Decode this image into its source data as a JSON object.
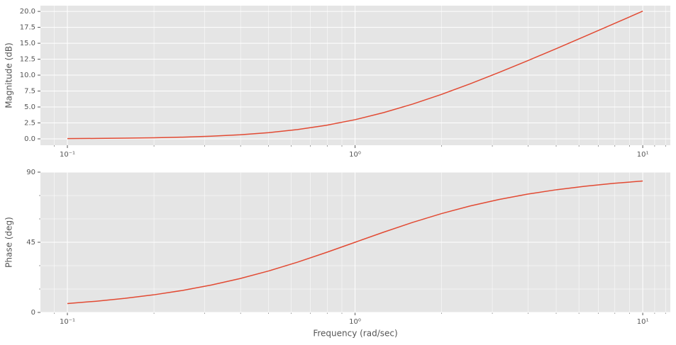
{
  "chart_data": [
    {
      "type": "line",
      "ylabel": "Magnitude (dB)",
      "xscale": "log",
      "grid": true,
      "background": "#e5e5e5",
      "x": [
        0.1,
        0.1259,
        0.1585,
        0.1995,
        0.2512,
        0.3162,
        0.3981,
        0.5012,
        0.631,
        0.7943,
        1,
        1.2589,
        1.5849,
        1.9953,
        2.5119,
        3.1623,
        3.9811,
        5.0119,
        6.3096,
        7.9433,
        10
      ],
      "series": [
        {
          "color": "#e24a33",
          "values": [
            0.0432,
            0.0683,
            0.1078,
            0.1695,
            0.2657,
            0.4139,
            0.6389,
            0.9734,
            1.4554,
            2.1245,
            3.0103,
            4.1246,
            5.4555,
            6.9732,
            8.6389,
            10.4139,
            12.2658,
            14.1695,
            16.1077,
            18.0683,
            20.0432
          ]
        }
      ],
      "xlim": [
        0.0806,
        12.47
      ],
      "xticks": [
        {
          "value": 0.1,
          "label": "10⁻¹"
        },
        {
          "value": 1,
          "label": "10⁰"
        },
        {
          "value": 10,
          "label": "10¹"
        }
      ],
      "xminorticks": [
        0.09,
        0.2,
        0.3,
        0.4,
        0.5,
        0.6,
        0.7,
        0.8,
        0.9,
        2,
        3,
        4,
        5,
        6,
        7,
        8,
        9,
        11,
        12
      ],
      "ylim": [
        -1.0,
        20.9
      ],
      "yticks": [
        {
          "value": 0,
          "label": "0.0"
        },
        2.5,
        {
          "value": 5,
          "label": "5.0"
        },
        7.5,
        {
          "value": 10,
          "label": "10.0"
        },
        12.5,
        {
          "value": 15,
          "label": "15.0"
        },
        17.5,
        {
          "value": 20,
          "label": "20.0"
        }
      ]
    },
    {
      "type": "line",
      "ylabel": "Phase (deg)",
      "xlabel": "Frequency (rad/sec)",
      "xscale": "log",
      "grid": true,
      "background": "#e5e5e5",
      "x": [
        0.1,
        0.1259,
        0.1585,
        0.1995,
        0.2512,
        0.3162,
        0.3981,
        0.5012,
        0.631,
        0.7943,
        1,
        1.2589,
        1.5849,
        1.9953,
        2.5119,
        3.1623,
        3.9811,
        5.0119,
        6.3096,
        7.9433,
        10
      ],
      "series": [
        {
          "color": "#e24a33",
          "values": [
            5.71,
            7.18,
            9.01,
            11.28,
            14.1,
            17.55,
            21.7,
            26.62,
            32.25,
            38.46,
            45,
            51.54,
            57.75,
            63.38,
            68.3,
            72.45,
            75.9,
            78.72,
            80.99,
            82.82,
            84.29
          ]
        }
      ],
      "xlim": [
        0.0806,
        12.47
      ],
      "xticks": [
        {
          "value": 0.1,
          "label": "10⁻¹"
        },
        {
          "value": 1,
          "label": "10⁰"
        },
        {
          "value": 10,
          "label": "10¹"
        }
      ],
      "xminorticks": [
        0.09,
        0.2,
        0.3,
        0.4,
        0.5,
        0.6,
        0.7,
        0.8,
        0.9,
        2,
        3,
        4,
        5,
        6,
        7,
        8,
        9,
        11,
        12
      ],
      "ylim": [
        0,
        90
      ],
      "yticks": [
        0,
        45,
        90
      ],
      "yminorticks": [
        15,
        30,
        60,
        75
      ]
    }
  ]
}
